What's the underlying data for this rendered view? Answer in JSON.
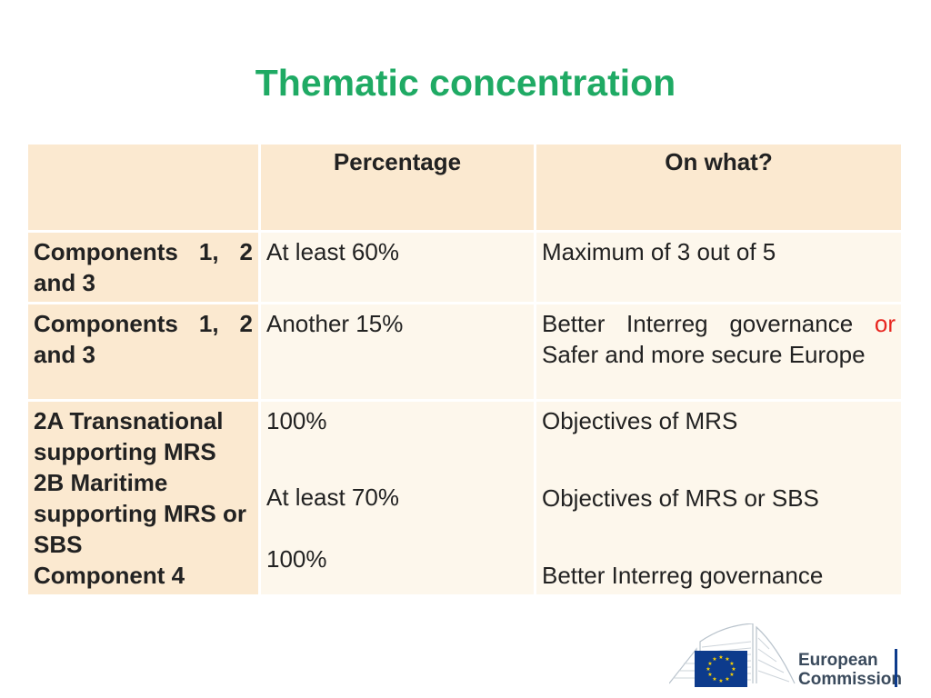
{
  "slide": {
    "title": "Thematic concentration"
  },
  "table": {
    "headers": [
      "",
      "Percentage",
      "On what?"
    ],
    "rows": [
      {
        "label": "Components 1, 2 and 3",
        "percentage": "At least 60%",
        "target": "Maximum of 3 out of 5"
      },
      {
        "label": "Components 1, 2 and 3",
        "percentage": "Another 15%",
        "target_part1": "Better Interreg governance",
        "target_or": "or",
        "target_part2": "Safer and more secure Europe"
      },
      {
        "lines": [
          {
            "label": "2A Transnational supporting MRS",
            "percentage": "100%",
            "target": "Objectives of MRS"
          },
          {
            "label": "2B Maritime supporting MRS or SBS",
            "percentage": "At least 70%",
            "target": "Objectives of MRS or SBS"
          },
          {
            "label": "Component 4",
            "percentage": "100%",
            "target": "Better Interreg governance"
          }
        ]
      }
    ]
  },
  "logo": {
    "line1": "European",
    "line2": "Commission",
    "icon": "eu-flag-icon",
    "colors": {
      "flag_blue": "#0d3b8c",
      "stars": "#ffd500"
    }
  }
}
